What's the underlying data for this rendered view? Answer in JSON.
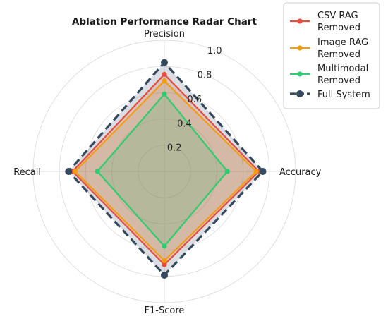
{
  "chart_data": {
    "type": "radar",
    "title": "Ablation Performance Radar Chart",
    "axes": [
      "Accuracy",
      "Precision",
      "Recall",
      "F1-Score"
    ],
    "radial_ticks": [
      "0.2",
      "0.4",
      "0.6",
      "0.8",
      "1.0"
    ],
    "rlim": [
      0,
      1.0
    ],
    "grid": true,
    "legend_position": "top-right",
    "series": [
      {
        "name": "CSV RAG\nRemoved",
        "values": [
          0.72,
          0.74,
          0.7,
          0.71
        ],
        "color": "#e74c3c",
        "line": "solid"
      },
      {
        "name": "Image RAG\nRemoved",
        "values": [
          0.7,
          0.69,
          0.68,
          0.68
        ],
        "color": "#f39c12",
        "line": "solid"
      },
      {
        "name": "Multimodal\nRemoved",
        "values": [
          0.48,
          0.59,
          0.51,
          0.57
        ],
        "color": "#2ecc71",
        "line": "solid"
      },
      {
        "name": "Full System",
        "values": [
          0.75,
          0.83,
          0.73,
          0.79
        ],
        "color": "#34495e",
        "line": "dashed"
      }
    ]
  }
}
